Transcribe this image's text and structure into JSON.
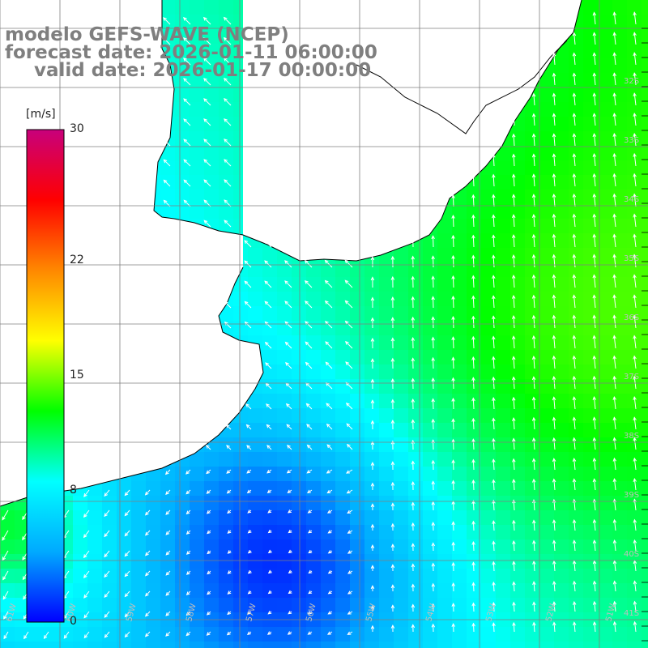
{
  "title": {
    "line1": "modelo GEFS-WAVE (NCEP)",
    "line2": "forecast date: 2026-01-11 06:00:00",
    "line3": "valid date: 2026-01-17 00:00:00"
  },
  "colorbar": {
    "unit": "[m/s]",
    "min": 0,
    "max": 30,
    "ticks": [
      {
        "label": "30",
        "value": 30
      },
      {
        "label": "22",
        "value": 22
      },
      {
        "label": "15",
        "value": 15
      },
      {
        "label": "8",
        "value": 8
      },
      {
        "label": "0",
        "value": 0
      }
    ],
    "colors": [
      "#0000ff",
      "#00aaff",
      "#00ffff",
      "#00ff00",
      "#ffff00",
      "#ff8800",
      "#ff0000",
      "#c8007c"
    ]
  },
  "axes": {
    "lat_labels": [
      "32S",
      "33S",
      "34S",
      "35S",
      "36S",
      "37S",
      "38S",
      "39S",
      "40S",
      "41S"
    ],
    "lon_labels": [
      "61W",
      "60W",
      "59W",
      "58W",
      "57W",
      "56W",
      "55W",
      "54W",
      "53W",
      "52W",
      "51W"
    ]
  },
  "map": {
    "land_color": "#ffffff",
    "coast_color": "#000000",
    "grid_color": "#7f7f7f",
    "arrow_color": "#ffffff"
  }
}
